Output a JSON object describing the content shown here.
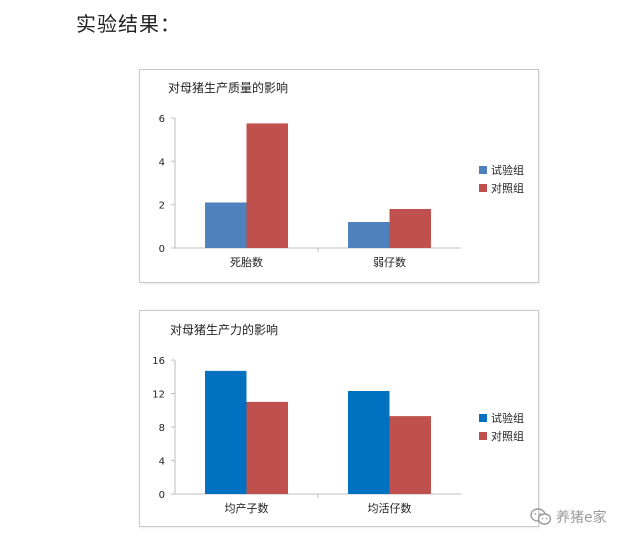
{
  "heading": "实验结果：",
  "watermark": {
    "text": "养猪e家",
    "icon": "wechat-icon"
  },
  "colors": {
    "chart1_series": [
      "#4f81bd",
      "#c0504d"
    ],
    "chart2_series": [
      "#0070c0",
      "#c0504d"
    ],
    "axis": "#bfbfbf"
  },
  "chart_data": [
    {
      "type": "bar",
      "title": "对母猪生产质量的影响",
      "categories": [
        "死胎数",
        "弱仔数"
      ],
      "series": [
        {
          "name": "试验组",
          "values": [
            2.1,
            1.2
          ]
        },
        {
          "name": "对照组",
          "values": [
            5.75,
            1.8
          ]
        }
      ],
      "ylim": [
        0,
        6
      ],
      "yticks": [
        0,
        2,
        4,
        6
      ],
      "legend": "right",
      "grid": false
    },
    {
      "type": "bar",
      "title": "对母猪生产力的影响",
      "categories": [
        "均产子数",
        "均活仔数"
      ],
      "series": [
        {
          "name": "试验组",
          "values": [
            14.7,
            12.3
          ]
        },
        {
          "name": "对照组",
          "values": [
            11.0,
            9.3
          ]
        }
      ],
      "ylim": [
        0,
        16
      ],
      "yticks": [
        0,
        4,
        8,
        12,
        16
      ],
      "legend": "right",
      "grid": false
    }
  ]
}
